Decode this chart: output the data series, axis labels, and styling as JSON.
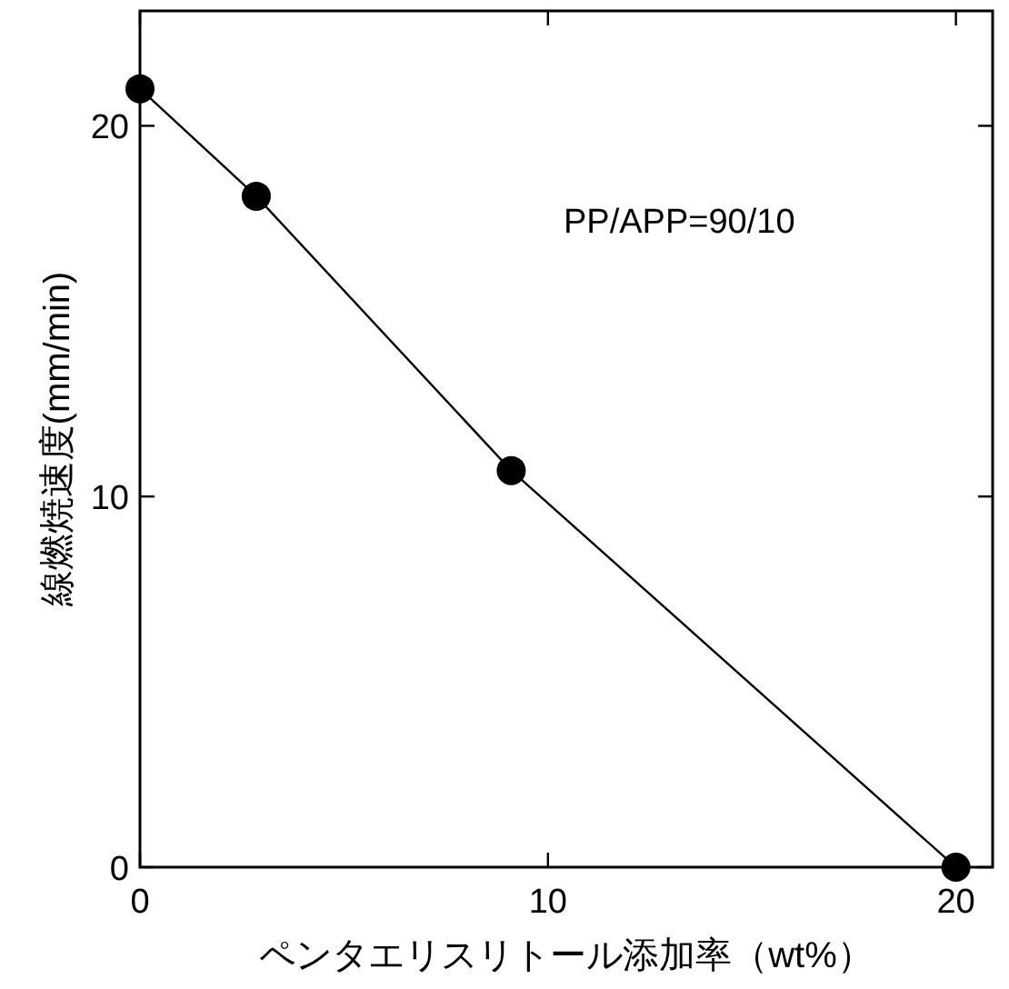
{
  "chart_data": {
    "type": "line",
    "xlabel": "ペンタエリスリトール添加率（wt%）",
    "ylabel": "線燃焼速度(mm/min)",
    "annotations": [
      "PP/APP=90/10"
    ],
    "x": [
      0,
      2.85,
      9.1,
      20
    ],
    "series": [
      {
        "color": "#000000",
        "values": [
          21,
          18.1,
          10.7,
          0
        ]
      }
    ],
    "xlim": [
      0,
      20.9
    ],
    "ylim": [
      0,
      23.1
    ],
    "xticks": [
      0,
      10,
      20
    ],
    "yticks": [
      0,
      10,
      20
    ],
    "marker": "circle",
    "line_style": "solid",
    "grid": false
  }
}
